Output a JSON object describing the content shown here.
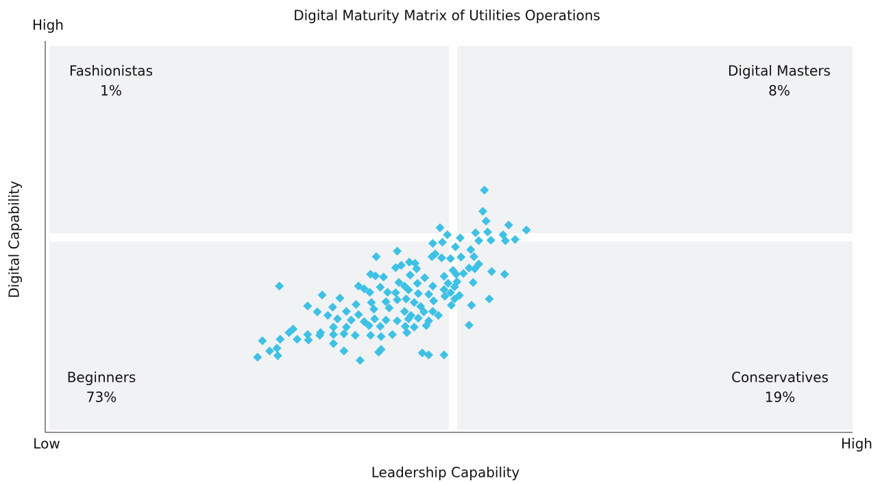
{
  "chart_data": {
    "type": "scatter",
    "title": "Digital Maturity Matrix of Utilities Operations",
    "xlabel": "Leadership Capability",
    "ylabel": "Digital Capability",
    "xlim": [
      0,
      100
    ],
    "ylim": [
      0,
      100
    ],
    "xticks": [
      {
        "value": 0,
        "label": "Low"
      },
      {
        "value": 100,
        "label": "High"
      }
    ],
    "yticks": [
      {
        "value": 100,
        "label": "High"
      }
    ],
    "color": "#3ec1e4",
    "quadrants": {
      "names": [
        "Fashionistas",
        "Digital Masters",
        "Beginners",
        "Conservatives"
      ],
      "values": [
        1,
        8,
        73,
        19
      ],
      "value_labels": [
        "1%",
        "8%",
        "73%",
        "19%"
      ]
    },
    "x": [
      54.4,
      54.2,
      54.6,
      57.4,
      59.6,
      48.9,
      49.8,
      53.3,
      54.8,
      56.7,
      57.0,
      58.2,
      55.2,
      51.4,
      53.7,
      48.0,
      49.2,
      43.6,
      48.3,
      50.8,
      52.7,
      51.5,
      50.2,
      49.1,
      47.9,
      53.1,
      53.7,
      41.0,
      45.1,
      44.1,
      43.4,
      45.8,
      55.3,
      56.9,
      46.0,
      50.5,
      50.9,
      51.8,
      52.5,
      53.2,
      40.3,
      40.9,
      41.9,
      45.2,
      47.0,
      49.4,
      51.0,
      53.0,
      29.0,
      38.8,
      39.5,
      41.5,
      43.8,
      44.5,
      46.1,
      48.0,
      49.4,
      49.9,
      50.7,
      50.2,
      50.7,
      51.3,
      49.5,
      40.2,
      42.4,
      43.4,
      45.0,
      46.2,
      47.5,
      48.1,
      52.8,
      55.0,
      34.3,
      36.5,
      38.5,
      40.4,
      42.2,
      43.6,
      44.7,
      45.7,
      46.5,
      32.5,
      35.6,
      37.3,
      38.8,
      40.7,
      42.6,
      44.5,
      45.3,
      46.9,
      48.0,
      50.3,
      33.7,
      35.0,
      36.2,
      37.9,
      39.5,
      40.8,
      42.2,
      43.6,
      45.0,
      46.2,
      47.5,
      48.7,
      30.2,
      30.7,
      29.1,
      31.2,
      32.5,
      32.6,
      34.1,
      34.0,
      35.7,
      37.0,
      38.4,
      40.3,
      41.6,
      43.0,
      44.8,
      45.7,
      47.2,
      52.5,
      26.9,
      26.3,
      27.8,
      28.8,
      28.7,
      35.7,
      37.0,
      39.0,
      41.3,
      41.6,
      46.7,
      47.5,
      49.4,
      40.1,
      35.7,
      37.3,
      41.5,
      44.6
    ],
    "y": [
      61.9,
      56.5,
      54.0,
      53.0,
      51.7,
      52.3,
      50.5,
      51.0,
      51.2,
      50.5,
      49.0,
      49.3,
      49.1,
      49.7,
      49.0,
      48.3,
      48.6,
      46.3,
      45.6,
      47.4,
      46.7,
      44.8,
      44.4,
      44.6,
      44.9,
      44.9,
      43.0,
      44.9,
      43.5,
      42.7,
      42.1,
      43.2,
      41.1,
      40.4,
      41.8,
      41.4,
      40.4,
      40.6,
      42.0,
      41.8,
      40.4,
      40.0,
      39.7,
      40.2,
      39.5,
      39.9,
      38.5,
      38.3,
      37.4,
      37.4,
      36.7,
      37.1,
      38.3,
      37.4,
      38.1,
      37.4,
      36.5,
      38.1,
      37.2,
      35.7,
      34.1,
      35.0,
      34.8,
      35.8,
      35.8,
      35.7,
      36.4,
      35.5,
      35.3,
      33.6,
      32.5,
      34.1,
      35.1,
      34.3,
      32.7,
      33.2,
      33.4,
      33.9,
      34.1,
      33.2,
      32.2,
      32.3,
      32.0,
      30.9,
      30.1,
      31.5,
      31.8,
      30.9,
      29.9,
      30.8,
      30.9,
      32.5,
      30.8,
      29.9,
      29.0,
      28.7,
      28.3,
      29.0,
      28.7,
      28.5,
      29.0,
      29.2,
      28.5,
      29.9,
      25.5,
      26.4,
      23.8,
      23.8,
      25.0,
      23.6,
      25.5,
      24.8,
      25.0,
      25.2,
      24.8,
      24.8,
      24.5,
      25.0,
      25.5,
      26.9,
      27.3,
      27.4,
      23.4,
      19.2,
      20.8,
      19.6,
      21.5,
      22.7,
      20.8,
      18.4,
      20.5,
      21.2,
      20.3,
      19.8,
      19.8,
      27.3,
      26.9,
      26.9,
      27.1,
      27.1
    ]
  }
}
